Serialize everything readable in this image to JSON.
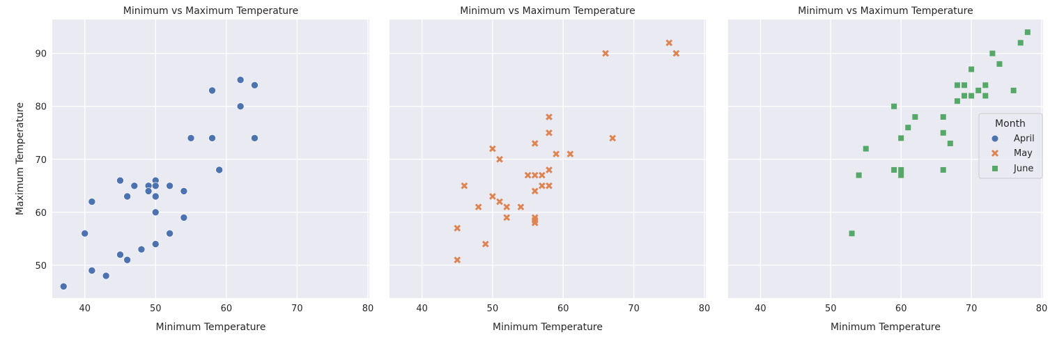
{
  "chart_data": [
    {
      "type": "scatter",
      "title": "Minimum vs Maximum Temperature",
      "xlabel": "Minimum Temperature",
      "ylabel": "Maximum Temperature",
      "xlim": [
        35.4,
        80.2
      ],
      "ylim": [
        43.8,
        96.4
      ],
      "xticks": [
        40,
        50,
        60,
        70,
        80
      ],
      "yticks": [
        50,
        60,
        70,
        80,
        90
      ],
      "grid": true,
      "series": [
        {
          "name": "April",
          "marker": "circle",
          "color": "#4c72b0",
          "points": [
            [
              37,
              46
            ],
            [
              40,
              56
            ],
            [
              41,
              62
            ],
            [
              41,
              49
            ],
            [
              43,
              48
            ],
            [
              45,
              66
            ],
            [
              45,
              52
            ],
            [
              46,
              63
            ],
            [
              46,
              51
            ],
            [
              47,
              65
            ],
            [
              48,
              53
            ],
            [
              49,
              65
            ],
            [
              49,
              64
            ],
            [
              50,
              66
            ],
            [
              50,
              65
            ],
            [
              50,
              63
            ],
            [
              50,
              60
            ],
            [
              50,
              54
            ],
            [
              52,
              65
            ],
            [
              52,
              56
            ],
            [
              54,
              64
            ],
            [
              54,
              59
            ],
            [
              55,
              74
            ],
            [
              58,
              83
            ],
            [
              58,
              74
            ],
            [
              59,
              68
            ],
            [
              62,
              85
            ],
            [
              62,
              80
            ],
            [
              64,
              84
            ],
            [
              64,
              74
            ]
          ]
        }
      ]
    },
    {
      "type": "scatter",
      "title": "Minimum vs Maximum Temperature",
      "xlabel": "Minimum Temperature",
      "ylabel": "",
      "xlim": [
        35.4,
        80.2
      ],
      "ylim": [
        43.8,
        96.4
      ],
      "xticks": [
        40,
        50,
        60,
        70,
        80
      ],
      "yticks": [
        50,
        60,
        70,
        80,
        90
      ],
      "grid": true,
      "series": [
        {
          "name": "May",
          "marker": "x",
          "color": "#dd8452",
          "points": [
            [
              45,
              57
            ],
            [
              45,
              51
            ],
            [
              46,
              65
            ],
            [
              48,
              61
            ],
            [
              49,
              54
            ],
            [
              50,
              72
            ],
            [
              50,
              63
            ],
            [
              51,
              70
            ],
            [
              51,
              62
            ],
            [
              52,
              61
            ],
            [
              52,
              59
            ],
            [
              54,
              61
            ],
            [
              55,
              67
            ],
            [
              56,
              73
            ],
            [
              56,
              67
            ],
            [
              56,
              64
            ],
            [
              56,
              59
            ],
            [
              56,
              58.5
            ],
            [
              56,
              58
            ],
            [
              57,
              67
            ],
            [
              57,
              65
            ],
            [
              58,
              78
            ],
            [
              58,
              75
            ],
            [
              58,
              68
            ],
            [
              58,
              65
            ],
            [
              59,
              71
            ],
            [
              61,
              71
            ],
            [
              66,
              90
            ],
            [
              67,
              74
            ],
            [
              75,
              92
            ],
            [
              76,
              90
            ]
          ]
        }
      ]
    },
    {
      "type": "scatter",
      "title": "Minimum vs Maximum Temperature",
      "xlabel": "Minimum Temperature",
      "ylabel": "",
      "xlim": [
        35.4,
        80.2
      ],
      "ylim": [
        43.8,
        96.4
      ],
      "xticks": [
        40,
        50,
        60,
        70,
        80
      ],
      "yticks": [
        50,
        60,
        70,
        80,
        90
      ],
      "grid": true,
      "series": [
        {
          "name": "June",
          "marker": "square",
          "color": "#55a868",
          "points": [
            [
              53,
              56
            ],
            [
              54,
              67
            ],
            [
              55,
              72
            ],
            [
              59,
              80
            ],
            [
              59,
              68
            ],
            [
              60,
              74
            ],
            [
              60,
              68
            ],
            [
              60,
              67
            ],
            [
              61,
              76
            ],
            [
              62,
              78
            ],
            [
              66,
              78
            ],
            [
              66,
              75
            ],
            [
              66,
              68
            ],
            [
              67,
              73
            ],
            [
              68,
              84
            ],
            [
              68,
              81
            ],
            [
              69,
              84
            ],
            [
              69,
              82
            ],
            [
              70,
              87
            ],
            [
              70,
              82
            ],
            [
              71,
              83
            ],
            [
              72,
              84
            ],
            [
              72,
              82
            ],
            [
              73,
              90
            ],
            [
              74,
              88
            ],
            [
              76,
              83
            ],
            [
              77,
              92
            ],
            [
              78,
              94
            ]
          ]
        }
      ]
    }
  ],
  "legend": {
    "title": "Month",
    "placement": "center-right of third panel",
    "entries": [
      {
        "label": "April",
        "marker": "circle",
        "color": "#4c72b0"
      },
      {
        "label": "May",
        "marker": "x",
        "color": "#dd8452"
      },
      {
        "label": "June",
        "marker": "square",
        "color": "#55a868"
      }
    ]
  },
  "colors": {
    "plot_background": "#eaeaf2",
    "grid": "#ffffff"
  }
}
